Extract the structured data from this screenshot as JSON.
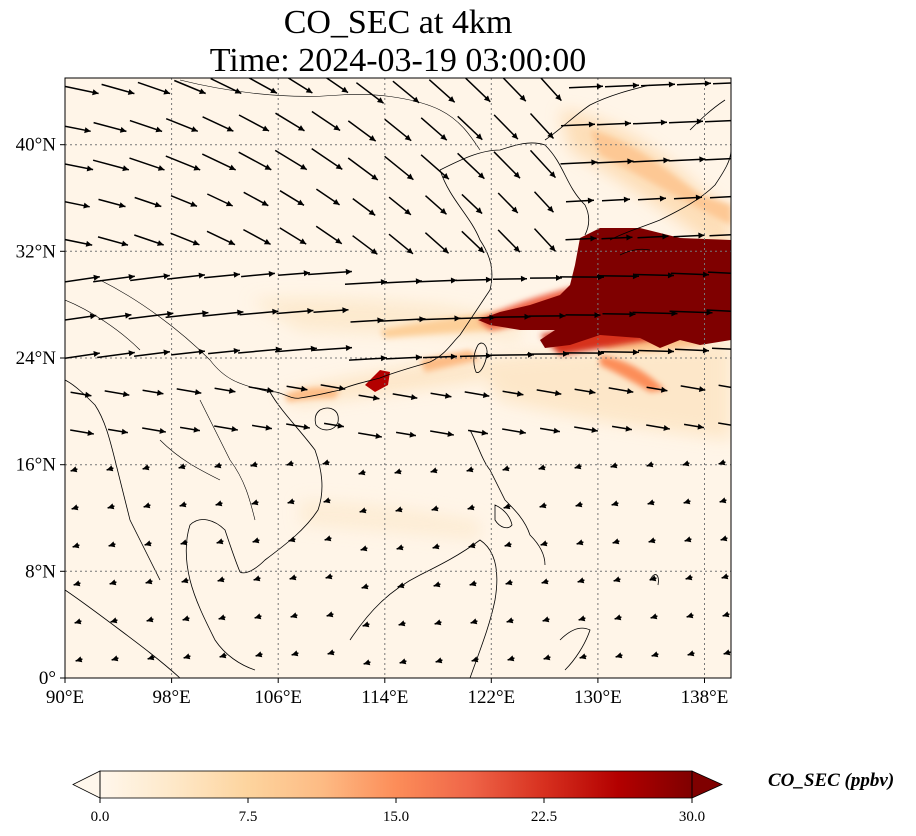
{
  "title": {
    "line1": "CO_SEC at 4km",
    "line2": "Time: 2024-03-19 03:00:00"
  },
  "map": {
    "lon_range": [
      90,
      140
    ],
    "lat_range": [
      0,
      45
    ],
    "lon_ticks": [
      "90°E",
      "98°E",
      "106°E",
      "114°E",
      "122°E",
      "130°E",
      "138°E"
    ],
    "lat_ticks": [
      "0°",
      "8°N",
      "16°N",
      "24°N",
      "32°N",
      "40°N"
    ],
    "gridlines": true,
    "plume_color": "#7f0000"
  },
  "colorbar": {
    "label": "CO_SEC (ppbv)",
    "ticks": [
      "0.0",
      "7.5",
      "15.0",
      "22.5",
      "30.0"
    ],
    "min": 0,
    "max": 30,
    "colors": [
      "#fff7ec",
      "#fee8c8",
      "#fdd49e",
      "#fdbb84",
      "#fc8d59",
      "#ef6548",
      "#d7301f",
      "#b30000",
      "#7f0000"
    ]
  }
}
